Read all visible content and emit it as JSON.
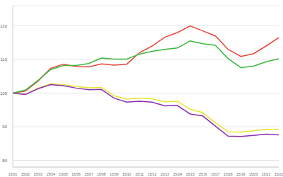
{
  "chart_data": {
    "type": "line",
    "categories": [
      "15/01",
      "15/02",
      "15/03",
      "15/04",
      "15/05",
      "15/06",
      "15/07",
      "15/08",
      "15/09",
      "15/10",
      "15/11",
      "15/12",
      "15/13",
      "15/14",
      "15/15",
      "15/16",
      "15/17",
      "15/18",
      "15/19",
      "15/20",
      "15/21",
      "15/22"
    ],
    "series": [
      {
        "color": "#e8453c",
        "values": [
          100,
          100.6,
          103.6,
          107.4,
          108.6,
          107.9,
          107.8,
          108.7,
          108.3,
          108.6,
          112,
          114,
          116.6,
          118,
          120,
          118.5,
          117,
          113,
          110.9,
          111.7,
          114,
          116.5
        ]
      },
      {
        "color": "#3cb83c",
        "values": [
          100,
          100.9,
          103.8,
          107,
          108.2,
          108.2,
          108.8,
          110.4,
          110.1,
          110.1,
          111.6,
          112.4,
          113,
          113.4,
          115.5,
          114.7,
          114.2,
          110.3,
          107.6,
          108,
          109.3,
          110.2
        ]
      },
      {
        "color": "#e6e62e",
        "values": [
          100,
          99.6,
          101.5,
          102.8,
          102.5,
          102,
          101.6,
          101.7,
          99.2,
          98.2,
          98.5,
          98.3,
          97.4,
          97.6,
          95.2,
          94.2,
          91.2,
          88.5,
          88.4,
          88.8,
          89.2,
          89.2
        ]
      },
      {
        "color": "#8e2fb0",
        "values": [
          100,
          99.6,
          101.3,
          102.5,
          102.2,
          101.5,
          101,
          101.1,
          98.5,
          97.3,
          97.6,
          97.3,
          96.2,
          96.3,
          93.8,
          93.2,
          90.2,
          87.2,
          87.1,
          87.4,
          87.8,
          87.6
        ]
      }
    ],
    "ylim": [
      78,
      126
    ],
    "yticks": [
      80,
      90,
      100,
      110,
      120
    ],
    "grid": true
  }
}
